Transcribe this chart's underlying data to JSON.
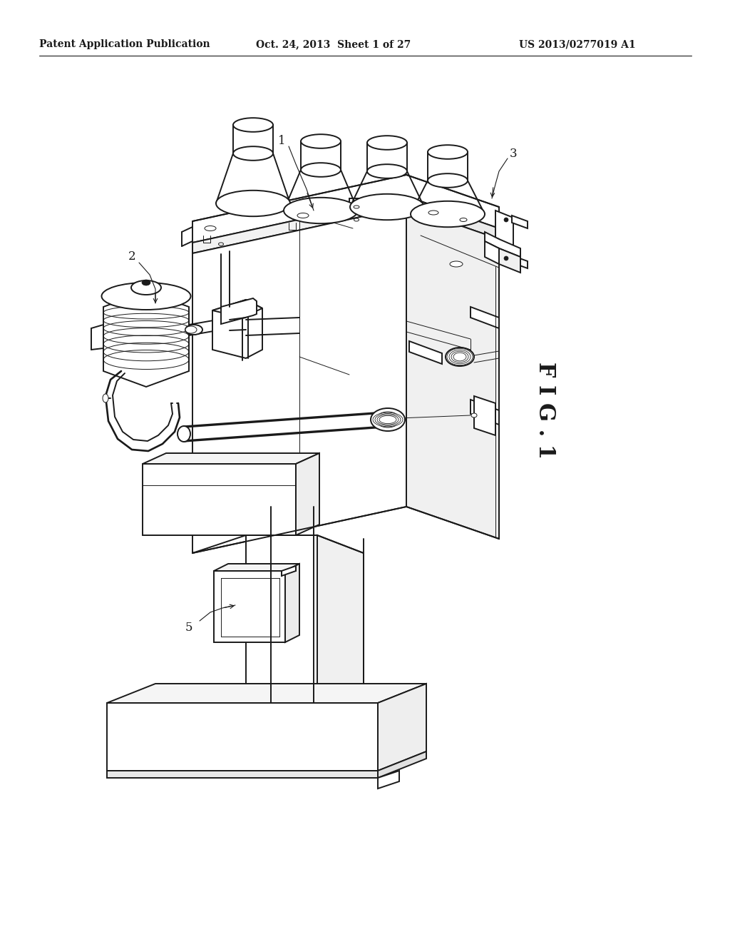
{
  "background_color": "#ffffff",
  "header_left": "Patent Application Publication",
  "header_center": "Oct. 24, 2013  Sheet 1 of 27",
  "header_right": "US 2013/0277019 A1",
  "fig_label": "F I G . 1",
  "label_1": "1",
  "label_2": "2",
  "label_3": "3",
  "label_5": "5",
  "line_color": "#1a1a1a",
  "lw_main": 1.4,
  "lw_thin": 0.7,
  "lw_header": 0.8
}
